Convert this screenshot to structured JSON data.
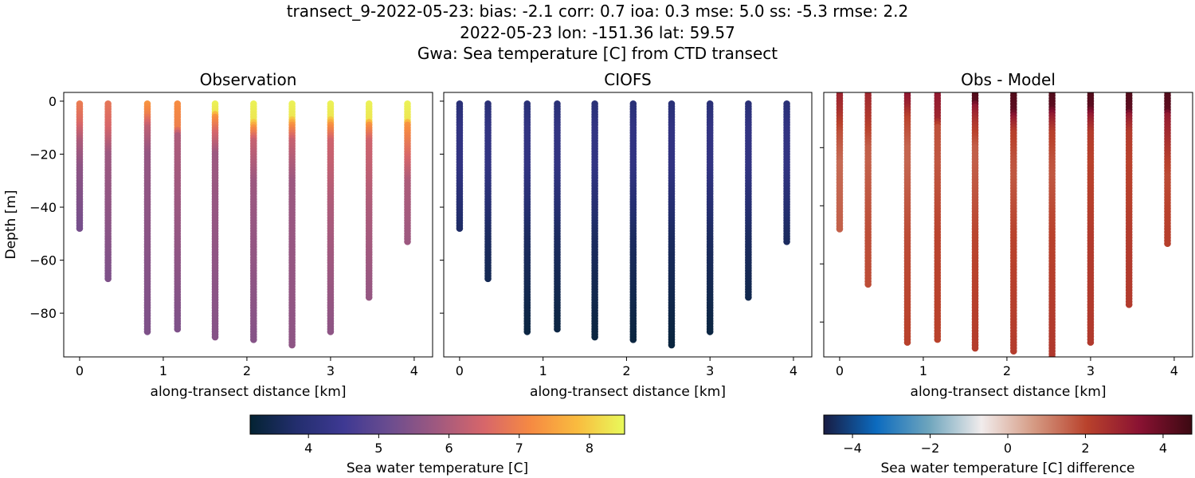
{
  "title_lines": [
    "transect_9-2022-05-23: bias: -2.1  corr: 0.7  ioa: 0.3  mse: 5.0  ss: -5.3  rmse: 2.2",
    "2022-05-23 lon: -151.36 lat: 59.57",
    "Gwa: Sea temperature [C] from CTD transect"
  ],
  "chart_data": [
    {
      "type": "scatter",
      "title": "Observation",
      "xlabel": "along-transect distance [km]",
      "ylabel": "Depth [m]",
      "xlim": [
        -0.19,
        4.22
      ],
      "ylim": [
        -96.5,
        3.3
      ],
      "xticks": [
        0,
        1,
        2,
        3,
        4
      ],
      "yticks": [
        0,
        -20,
        -40,
        -60,
        -80
      ],
      "colormap": "thermal",
      "field": "obs"
    },
    {
      "type": "scatter",
      "title": "CIOFS",
      "xlabel": "along-transect distance [km]",
      "ylabel": "",
      "xlim": [
        -0.19,
        4.22
      ],
      "ylim": [
        -96.5,
        3.3
      ],
      "xticks": [
        0,
        1,
        2,
        3,
        4
      ],
      "yticks": [
        0,
        -20,
        -40,
        -60,
        -80
      ],
      "show_ytick_labels": false,
      "colormap": "thermal",
      "field": "model"
    },
    {
      "type": "scatter",
      "title": "Obs - Model",
      "xlabel": "along-transect distance [km]",
      "ylabel": "",
      "xlim": [
        -0.19,
        4.22
      ],
      "ylim": [
        -92,
        -1
      ],
      "xticks": [
        0,
        1,
        2,
        3,
        4
      ],
      "yticks": [
        -20,
        -40,
        -60,
        -80
      ],
      "show_ytick_labels": false,
      "colormap": "balance",
      "field": "diff"
    }
  ],
  "profiles": [
    {
      "x": 0.0,
      "max_depth": -48,
      "obs": [
        [
          -1,
          6.9
        ],
        [
          -8,
          6.6
        ],
        [
          -15,
          6.0
        ],
        [
          -25,
          5.6
        ],
        [
          -48,
          5.3
        ]
      ]
    },
    {
      "x": 0.34,
      "max_depth": -67,
      "obs": [
        [
          -1,
          6.8
        ],
        [
          -10,
          6.5
        ],
        [
          -20,
          5.8
        ],
        [
          -67,
          5.4
        ]
      ]
    },
    {
      "x": 0.81,
      "max_depth": -87,
      "obs": [
        [
          -1,
          7.3
        ],
        [
          -5,
          7.0
        ],
        [
          -10,
          6.2
        ],
        [
          -20,
          5.7
        ],
        [
          -87,
          5.4
        ]
      ]
    },
    {
      "x": 1.17,
      "max_depth": -86,
      "obs": [
        [
          -1,
          7.2
        ],
        [
          -10,
          7.0
        ],
        [
          -13,
          6.0
        ],
        [
          -86,
          5.4
        ]
      ]
    },
    {
      "x": 1.62,
      "max_depth": -89,
      "obs": [
        [
          -1,
          8.4
        ],
        [
          -4,
          8.3
        ],
        [
          -6,
          7.3
        ],
        [
          -12,
          6.5
        ],
        [
          -20,
          5.8
        ],
        [
          -89,
          5.5
        ]
      ]
    },
    {
      "x": 2.08,
      "max_depth": -90,
      "obs": [
        [
          -1,
          8.4
        ],
        [
          -7,
          8.3
        ],
        [
          -10,
          7.3
        ],
        [
          -15,
          6.3
        ],
        [
          -30,
          5.8
        ],
        [
          -90,
          5.5
        ]
      ]
    },
    {
      "x": 2.54,
      "max_depth": -92,
      "obs": [
        [
          -1,
          8.4
        ],
        [
          -6,
          8.3
        ],
        [
          -9,
          7.3
        ],
        [
          -15,
          6.3
        ],
        [
          -30,
          5.8
        ],
        [
          -92,
          5.6
        ]
      ]
    },
    {
      "x": 3.0,
      "max_depth": -87,
      "obs": [
        [
          -1,
          8.4
        ],
        [
          -6,
          8.3
        ],
        [
          -9,
          7.3
        ],
        [
          -15,
          6.4
        ],
        [
          -40,
          6.0
        ],
        [
          -87,
          5.6
        ]
      ]
    },
    {
      "x": 3.46,
      "max_depth": -74,
      "obs": [
        [
          -1,
          8.4
        ],
        [
          -7,
          8.3
        ],
        [
          -9,
          7.3
        ],
        [
          -15,
          6.4
        ],
        [
          -40,
          6.0
        ],
        [
          -74,
          5.7
        ]
      ]
    },
    {
      "x": 3.92,
      "max_depth": -53,
      "obs": [
        [
          -1,
          8.4
        ],
        [
          -7,
          8.3
        ],
        [
          -9,
          7.3
        ],
        [
          -20,
          6.6
        ],
        [
          -30,
          6.0
        ],
        [
          -53,
          5.8
        ]
      ]
    }
  ],
  "model_profile": [
    [
      -1,
      4.0
    ],
    [
      -10,
      4.2
    ],
    [
      -25,
      4.2
    ],
    [
      -50,
      3.7
    ],
    [
      -92,
      3.3
    ]
  ],
  "colorbars": [
    {
      "label": "Sea water temperature [C]",
      "range": [
        3.17,
        8.5
      ],
      "ticks": [
        4,
        5,
        6,
        7,
        8
      ],
      "colormap": "thermal"
    },
    {
      "label": "Sea water temperature [C] difference",
      "range": [
        -4.74,
        4.74
      ],
      "ticks": [
        -4,
        -2,
        0,
        2,
        4
      ],
      "colormap": "balance"
    }
  ],
  "colormaps": {
    "thermal": [
      "#042333",
      "#232e6e",
      "#3e3993",
      "#6c4d8f",
      "#a0597f",
      "#d7666a",
      "#f68a42",
      "#f9bc3f",
      "#e8fa5b"
    ],
    "balance": [
      "#181c43",
      "#0c6bbf",
      "#6ea5bd",
      "#f1ecec",
      "#d59a83",
      "#b9422c",
      "#8a1232",
      "#3c0912"
    ]
  }
}
